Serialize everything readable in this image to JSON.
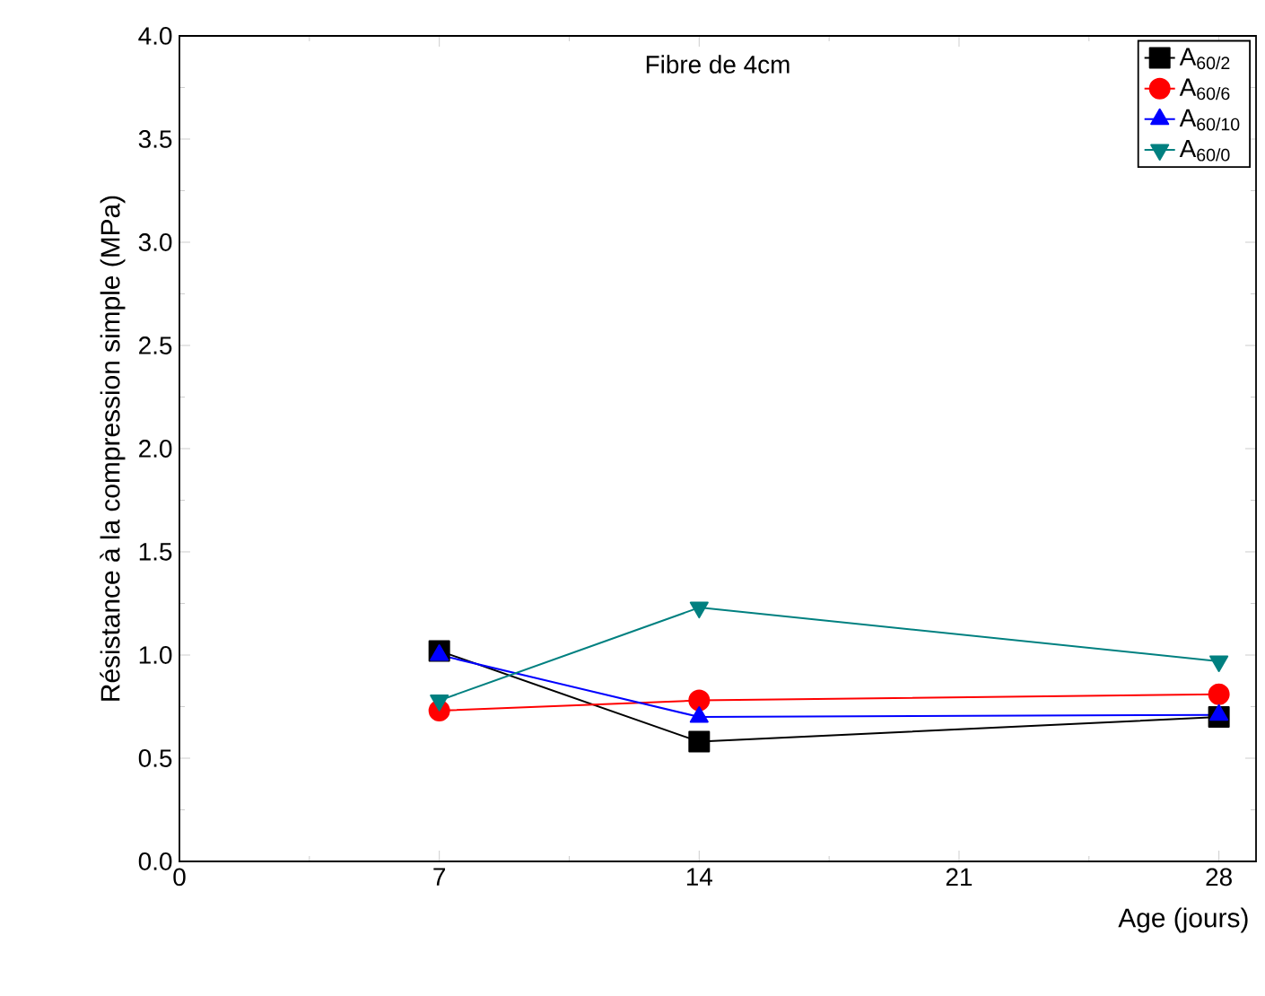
{
  "chart_data": {
    "type": "line",
    "x": [
      7,
      14,
      28
    ],
    "xlabel": "Age (jours)",
    "ylabel": "Résistance à la compression simple (MPa)",
    "annotations": [
      "Fibre de 4cm"
    ],
    "xlim": [
      0,
      29
    ],
    "xticks": [
      0,
      7,
      14,
      21,
      28
    ],
    "ylim": [
      0,
      4
    ],
    "yticks": [
      {
        "value": 0,
        "label": "0.0"
      },
      {
        "value": 0.5,
        "label": "0.5"
      },
      {
        "value": 1,
        "label": "1.0"
      },
      {
        "value": 1.5,
        "label": "1.5"
      },
      {
        "value": 2,
        "label": "2.0"
      },
      {
        "value": 2.5,
        "label": "2.5"
      },
      {
        "value": 3,
        "label": "3.0"
      },
      {
        "value": 3.5,
        "label": "3.5"
      },
      {
        "value": 4,
        "label": "4.0"
      }
    ],
    "legend": "top right",
    "grid": false,
    "line_style": "solid",
    "series": [
      {
        "name": "A$_{60/2}$",
        "color": "#000000",
        "marker": "square",
        "values": [
          1.02,
          0.58,
          0.7
        ]
      },
      {
        "name": "A$_{60/6}$",
        "color": "#ff0000",
        "marker": "circle",
        "values": [
          0.73,
          0.78,
          0.81
        ]
      },
      {
        "name": "A$_{60/10}$",
        "color": "#0000ff",
        "marker": "triangle",
        "values": [
          1.0,
          0.7,
          0.71
        ]
      },
      {
        "name": "A$_{60/0}$",
        "color": "#008080",
        "marker": "triangle-down",
        "values": [
          0.78,
          1.23,
          0.97
        ]
      }
    ]
  }
}
